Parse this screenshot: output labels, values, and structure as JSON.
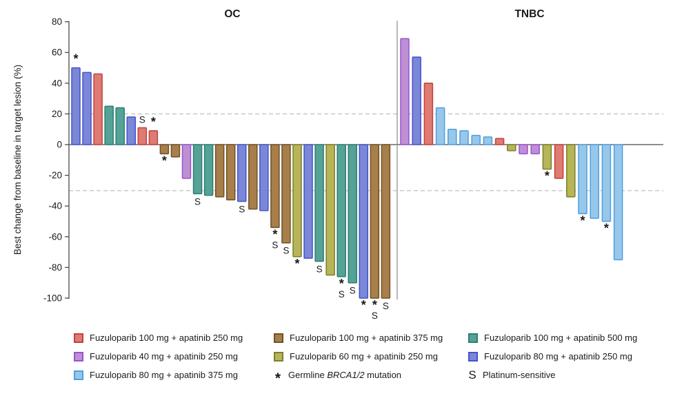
{
  "ylabel": "Best change from baseline in target lesion (%)",
  "colors": {
    "fuzu100apa250": {
      "fill": "#DE7B72",
      "stroke": "#C2413B"
    },
    "fuzu100apa375": {
      "fill": "#A87E4B",
      "stroke": "#6E5124"
    },
    "fuzu100apa500": {
      "fill": "#55A296",
      "stroke": "#2E7D73"
    },
    "fuzu40apa250": {
      "fill": "#BD90D3",
      "stroke": "#9B51D0"
    },
    "fuzu60apa250": {
      "fill": "#B6B557",
      "stroke": "#7E7D2C"
    },
    "fuzu80apa250": {
      "fill": "#7B87D7",
      "stroke": "#4353CB"
    },
    "fuzu80apa375": {
      "fill": "#98C7EA",
      "stroke": "#4C9FE1"
    }
  },
  "chart_data": {
    "type": "bar",
    "subtype": "waterfall",
    "ylabel": "Best change from baseline in target lesion (%)",
    "ylim": [
      -100,
      80
    ],
    "yticks": [
      80,
      60,
      40,
      20,
      0,
      -20,
      -40,
      -60,
      -80,
      -100
    ],
    "reference_lines": [
      20,
      -30
    ],
    "grid": "off",
    "panels": [
      {
        "label": "OC",
        "bars": [
          {
            "value": 50,
            "group": "fuzu80apa250",
            "marks": [
              "*"
            ]
          },
          {
            "value": 47,
            "group": "fuzu80apa250",
            "marks": []
          },
          {
            "value": 46,
            "group": "fuzu100apa250",
            "marks": []
          },
          {
            "value": 25,
            "group": "fuzu100apa500",
            "marks": []
          },
          {
            "value": 24,
            "group": "fuzu100apa500",
            "marks": []
          },
          {
            "value": 18,
            "group": "fuzu80apa250",
            "marks": []
          },
          {
            "value": 11,
            "group": "fuzu100apa250",
            "marks": [
              "S"
            ]
          },
          {
            "value": 9,
            "group": "fuzu100apa250",
            "marks": [
              "*"
            ]
          },
          {
            "value": -6,
            "group": "fuzu100apa375",
            "marks": [
              "*"
            ]
          },
          {
            "value": -8,
            "group": "fuzu100apa375",
            "marks": []
          },
          {
            "value": -22,
            "group": "fuzu40apa250",
            "marks": []
          },
          {
            "value": -32,
            "group": "fuzu100apa500",
            "marks": [
              "S"
            ]
          },
          {
            "value": -33,
            "group": "fuzu100apa500",
            "marks": []
          },
          {
            "value": -34,
            "group": "fuzu100apa375",
            "marks": []
          },
          {
            "value": -36,
            "group": "fuzu100apa375",
            "marks": []
          },
          {
            "value": -37,
            "group": "fuzu80apa250",
            "marks": [
              "S"
            ]
          },
          {
            "value": -42,
            "group": "fuzu100apa375",
            "marks": []
          },
          {
            "value": -43,
            "group": "fuzu80apa250",
            "marks": []
          },
          {
            "value": -54,
            "group": "fuzu100apa375",
            "marks": [
              "*",
              "S"
            ]
          },
          {
            "value": -64,
            "group": "fuzu100apa375",
            "marks": [
              "S"
            ]
          },
          {
            "value": -73,
            "group": "fuzu60apa250",
            "marks": [
              "*"
            ]
          },
          {
            "value": -74,
            "group": "fuzu80apa250",
            "marks": []
          },
          {
            "value": -76,
            "group": "fuzu100apa500",
            "marks": [
              "S"
            ]
          },
          {
            "value": -85,
            "group": "fuzu60apa250",
            "marks": []
          },
          {
            "value": -86,
            "group": "fuzu100apa500",
            "marks": [
              "*",
              "S"
            ]
          },
          {
            "value": -90,
            "group": "fuzu100apa500",
            "marks": [
              "S"
            ]
          },
          {
            "value": -100,
            "group": "fuzu80apa250",
            "marks": [
              "*"
            ]
          },
          {
            "value": -100,
            "group": "fuzu100apa375",
            "marks": [
              "*",
              "S"
            ]
          },
          {
            "value": -100,
            "group": "fuzu100apa375",
            "marks": [
              "S"
            ]
          }
        ]
      },
      {
        "label": "TNBC",
        "bars": [
          {
            "value": 69,
            "group": "fuzu40apa250",
            "marks": []
          },
          {
            "value": 57,
            "group": "fuzu80apa250",
            "marks": []
          },
          {
            "value": 40,
            "group": "fuzu100apa250",
            "marks": []
          },
          {
            "value": 24,
            "group": "fuzu80apa375",
            "marks": []
          },
          {
            "value": 10,
            "group": "fuzu80apa375",
            "marks": []
          },
          {
            "value": 9,
            "group": "fuzu80apa375",
            "marks": []
          },
          {
            "value": 6,
            "group": "fuzu80apa375",
            "marks": []
          },
          {
            "value": 5,
            "group": "fuzu80apa375",
            "marks": []
          },
          {
            "value": 4,
            "group": "fuzu100apa250",
            "marks": []
          },
          {
            "value": -4,
            "group": "fuzu60apa250",
            "marks": []
          },
          {
            "value": -6,
            "group": "fuzu40apa250",
            "marks": []
          },
          {
            "value": -6,
            "group": "fuzu40apa250",
            "marks": []
          },
          {
            "value": -16,
            "group": "fuzu60apa250",
            "marks": [
              "*"
            ]
          },
          {
            "value": -22,
            "group": "fuzu100apa250",
            "marks": []
          },
          {
            "value": -34,
            "group": "fuzu60apa250",
            "marks": []
          },
          {
            "value": -45,
            "group": "fuzu80apa375",
            "marks": [
              "*"
            ]
          },
          {
            "value": -48,
            "group": "fuzu80apa375",
            "marks": []
          },
          {
            "value": -50,
            "group": "fuzu80apa375",
            "marks": [
              "*"
            ]
          },
          {
            "value": -75,
            "group": "fuzu80apa375",
            "marks": []
          }
        ]
      }
    ]
  },
  "legend": {
    "items": [
      {
        "symbol": "square",
        "group": "fuzu100apa250",
        "label": "Fuzuloparib 100 mg + apatinib 250 mg"
      },
      {
        "symbol": "square",
        "group": "fuzu100apa375",
        "label": "Fuzuloparib 100 mg + apatinib 375 mg"
      },
      {
        "symbol": "square",
        "group": "fuzu100apa500",
        "label": "Fuzuloparib 100 mg + apatinib 500 mg"
      },
      {
        "symbol": "square",
        "group": "fuzu40apa250",
        "label": "Fuzuloparib 40 mg + apatinib 250 mg"
      },
      {
        "symbol": "square",
        "group": "fuzu60apa250",
        "label": "Fuzuloparib 60 mg + apatinib 250 mg"
      },
      {
        "symbol": "square",
        "group": "fuzu80apa250",
        "label": "Fuzuloparib 80 mg + apatinib 250 mg"
      },
      {
        "symbol": "square",
        "group": "fuzu80apa375",
        "label": "Fuzuloparib 80 mg + apatinib 375 mg"
      },
      {
        "symbol": "asterisk",
        "label_prefix": "Germline ",
        "label_italic": "BRCA1/2",
        "label_suffix": " mutation"
      },
      {
        "symbol": "S",
        "label": "Platinum-sensitive"
      }
    ]
  }
}
